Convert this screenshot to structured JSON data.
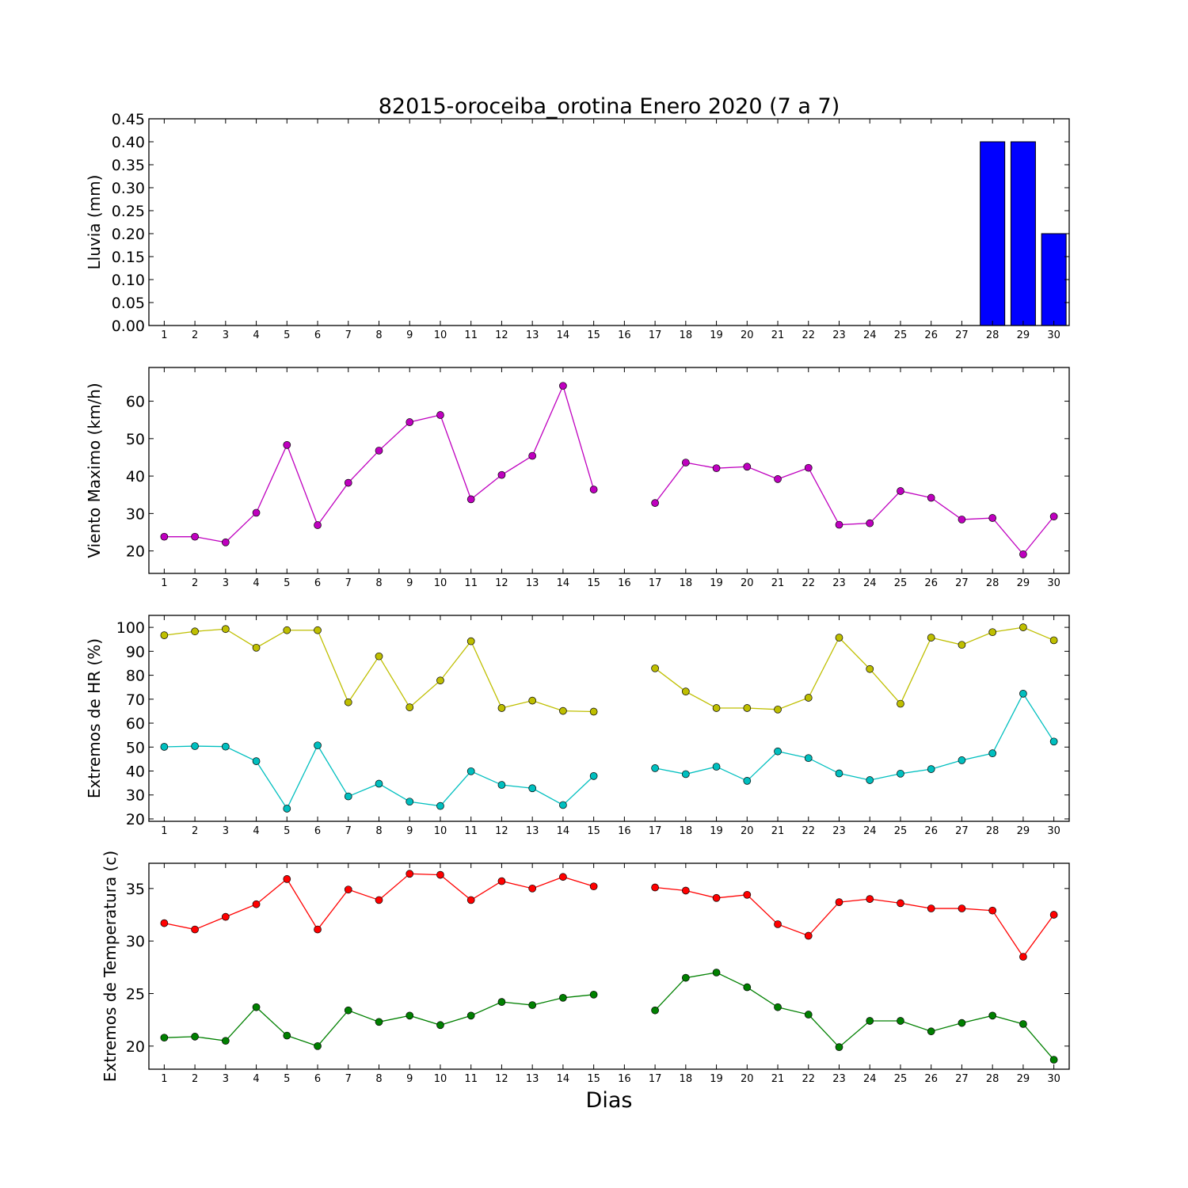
{
  "title": "82015-oroceiba_orotina Enero 2020  (7 a 7)",
  "xlabel": "Dias",
  "days": [
    1,
    2,
    3,
    4,
    5,
    6,
    7,
    8,
    9,
    10,
    11,
    12,
    13,
    14,
    15,
    16,
    17,
    18,
    19,
    20,
    21,
    22,
    23,
    24,
    25,
    26,
    27,
    28,
    29,
    30
  ],
  "chart_data": [
    {
      "type": "bar",
      "ylabel": "Lluvia (mm)",
      "ylim": [
        0,
        0.45
      ],
      "yticks": [
        "0.00",
        "0.05",
        "0.10",
        "0.15",
        "0.20",
        "0.25",
        "0.30",
        "0.35",
        "0.40",
        "0.45"
      ],
      "grid": false,
      "categories": [
        1,
        2,
        3,
        4,
        5,
        6,
        7,
        8,
        9,
        10,
        11,
        12,
        13,
        14,
        15,
        16,
        17,
        18,
        19,
        20,
        21,
        22,
        23,
        24,
        25,
        26,
        27,
        28,
        29,
        30
      ],
      "series": [
        {
          "color": "#0000ff",
          "values": [
            0,
            0,
            0,
            0,
            0,
            0,
            0,
            0,
            0,
            0,
            0,
            0,
            0,
            0,
            0,
            0,
            0,
            0,
            0,
            0,
            0,
            0,
            0,
            0,
            0,
            0,
            0,
            0.4,
            0.4,
            0.2
          ]
        }
      ]
    },
    {
      "type": "line",
      "ylabel": "Viento Maximo (km/h)",
      "ylim": [
        14,
        69
      ],
      "yticks": [
        "20",
        "30",
        "40",
        "50",
        "60"
      ],
      "grid": false,
      "x": [
        1,
        2,
        3,
        4,
        5,
        6,
        7,
        8,
        9,
        10,
        11,
        12,
        13,
        14,
        15,
        16,
        17,
        18,
        19,
        20,
        21,
        22,
        23,
        24,
        25,
        26,
        27,
        28,
        29,
        30
      ],
      "series": [
        {
          "color": "#bf00bf",
          "values": [
            23.8,
            23.8,
            22.3,
            30.2,
            48.3,
            26.9,
            38.2,
            46.8,
            54.4,
            56.3,
            33.8,
            40.3,
            45.4,
            64.1,
            36.4,
            null,
            32.8,
            43.6,
            42.1,
            42.5,
            39.2,
            42.2,
            27.0,
            27.4,
            36.0,
            34.2,
            28.4,
            28.8,
            19.1,
            29.2
          ]
        }
      ]
    },
    {
      "type": "line",
      "ylabel": "Extremos de HR (%)",
      "ylim": [
        19,
        105
      ],
      "yticks": [
        "20",
        "30",
        "40",
        "50",
        "60",
        "70",
        "80",
        "90",
        "100"
      ],
      "grid": false,
      "x": [
        1,
        2,
        3,
        4,
        5,
        6,
        7,
        8,
        9,
        10,
        11,
        12,
        13,
        14,
        15,
        16,
        17,
        18,
        19,
        20,
        21,
        22,
        23,
        24,
        25,
        26,
        27,
        28,
        29,
        30
      ],
      "series": [
        {
          "color": "#bfbf00",
          "values": [
            96.7,
            98.3,
            99.3,
            91.5,
            98.8,
            98.8,
            68.7,
            87.9,
            66.6,
            77.8,
            94.2,
            66.3,
            69.4,
            65.1,
            64.8,
            null,
            82.9,
            73.2,
            66.3,
            66.3,
            65.7,
            70.6,
            95.7,
            82.6,
            68.1,
            95.7,
            92.7,
            98.0,
            100.0,
            94.6
          ]
        },
        {
          "color": "#00bfbf",
          "values": [
            50.1,
            50.4,
            50.2,
            44.1,
            24.3,
            50.7,
            29.4,
            34.7,
            27.2,
            25.4,
            39.9,
            34.2,
            32.8,
            25.8,
            37.9,
            null,
            41.2,
            38.7,
            41.8,
            35.9,
            48.2,
            45.4,
            39.0,
            36.2,
            38.9,
            40.8,
            44.5,
            47.4,
            72.3,
            52.3
          ]
        }
      ]
    },
    {
      "type": "line",
      "ylabel": "Extremos de Temperatura (c)",
      "ylim": [
        17.8,
        37.4
      ],
      "yticks": [
        "20",
        "25",
        "30",
        "35"
      ],
      "grid": false,
      "x": [
        1,
        2,
        3,
        4,
        5,
        6,
        7,
        8,
        9,
        10,
        11,
        12,
        13,
        14,
        15,
        16,
        17,
        18,
        19,
        20,
        21,
        22,
        23,
        24,
        25,
        26,
        27,
        28,
        29,
        30
      ],
      "series": [
        {
          "color": "#ff0000",
          "values": [
            31.7,
            31.1,
            32.3,
            33.5,
            35.9,
            31.1,
            34.9,
            33.9,
            36.4,
            36.3,
            33.9,
            35.7,
            35.0,
            36.1,
            35.2,
            null,
            35.1,
            34.8,
            34.1,
            34.4,
            31.6,
            30.5,
            33.7,
            34.0,
            33.6,
            33.1,
            33.1,
            32.9,
            28.5,
            32.5
          ]
        },
        {
          "color": "#008000",
          "values": [
            20.8,
            20.9,
            20.5,
            23.7,
            21.0,
            20.0,
            23.4,
            22.3,
            22.9,
            22.0,
            22.9,
            24.2,
            23.9,
            24.6,
            24.9,
            null,
            23.4,
            26.5,
            27.0,
            25.6,
            23.7,
            23.0,
            19.9,
            22.4,
            22.4,
            21.4,
            22.2,
            22.9,
            22.1,
            18.7
          ]
        }
      ]
    }
  ]
}
